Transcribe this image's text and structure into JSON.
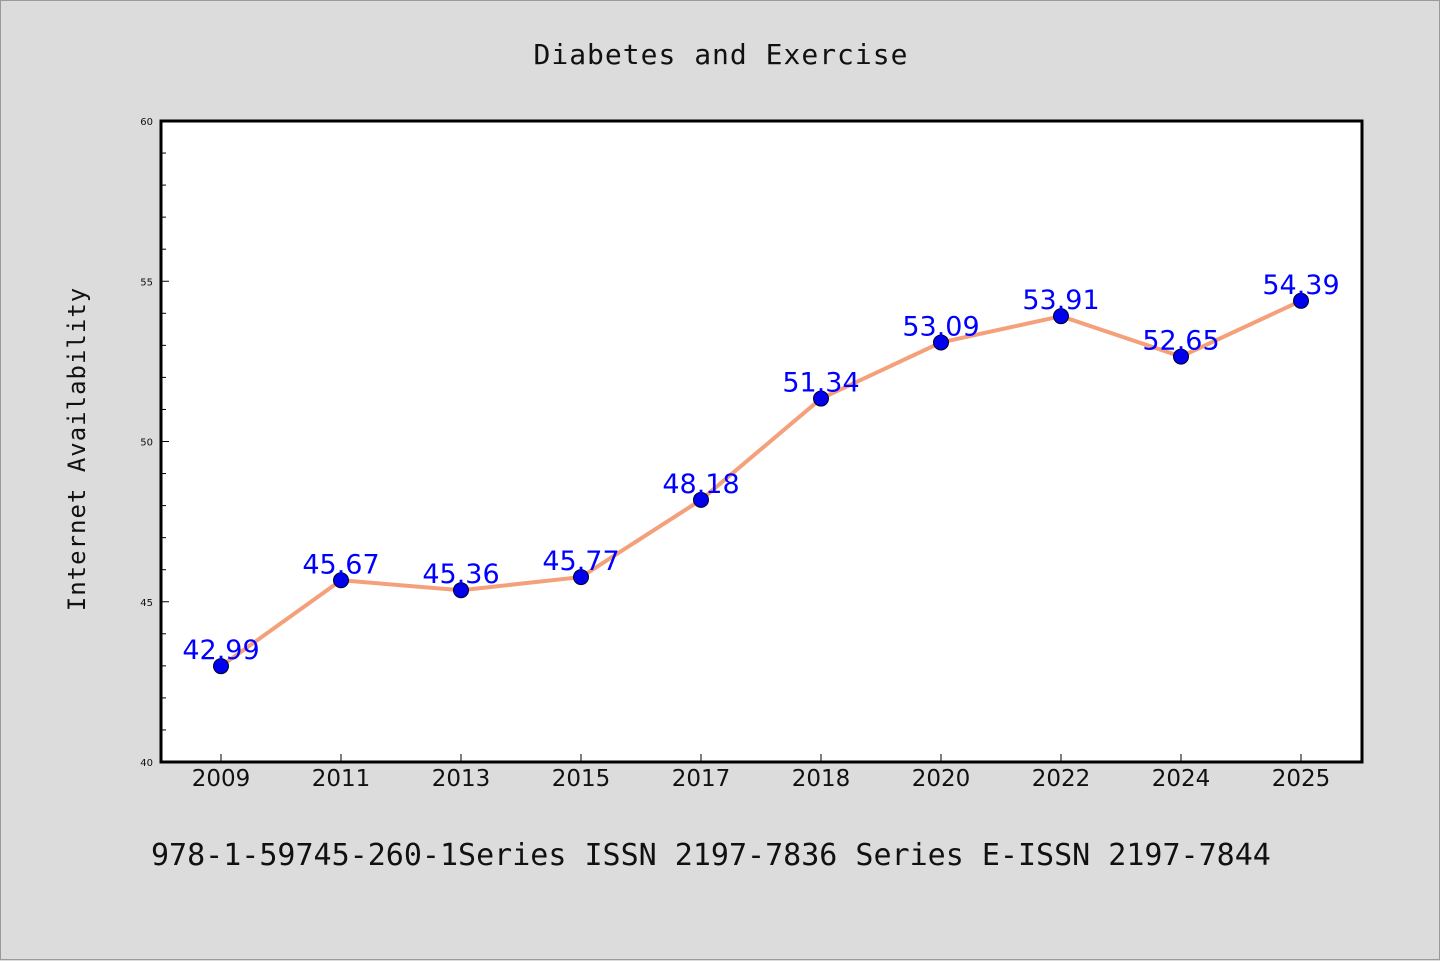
{
  "chart_data": {
    "type": "line",
    "title": "Diabetes and Exercise",
    "xlabel": "",
    "ylabel": "Internet Availability",
    "categories": [
      "2009",
      "2011",
      "2013",
      "2015",
      "2017",
      "2018",
      "2020",
      "2022",
      "2024",
      "2025"
    ],
    "series": [
      {
        "values": [
          42.99,
          45.67,
          45.36,
          45.77,
          48.18,
          51.34,
          53.09,
          53.91,
          52.65,
          54.39
        ],
        "labels": [
          "42.99",
          "45.67",
          "45.36",
          "45.77",
          "48.18",
          "51.34",
          "53.09",
          "53.91",
          "52.65",
          "54.39"
        ]
      }
    ],
    "ylim": [
      40,
      60
    ],
    "yticks": [
      40,
      45,
      50,
      55,
      60
    ],
    "ytick_labels": [
      "40",
      "45",
      "50",
      "55",
      "60"
    ],
    "y_minor_step": 1,
    "grid": false,
    "line_color": "#f4a07a",
    "marker_color": "#0000ee",
    "label_color": "#0000ff",
    "background_color": "#dcdcdc",
    "plot_background": "#ffffff"
  },
  "footer": {
    "text": "978-1-59745-260-1Series ISSN 2197-7836 Series E-ISSN 2197-7844"
  }
}
